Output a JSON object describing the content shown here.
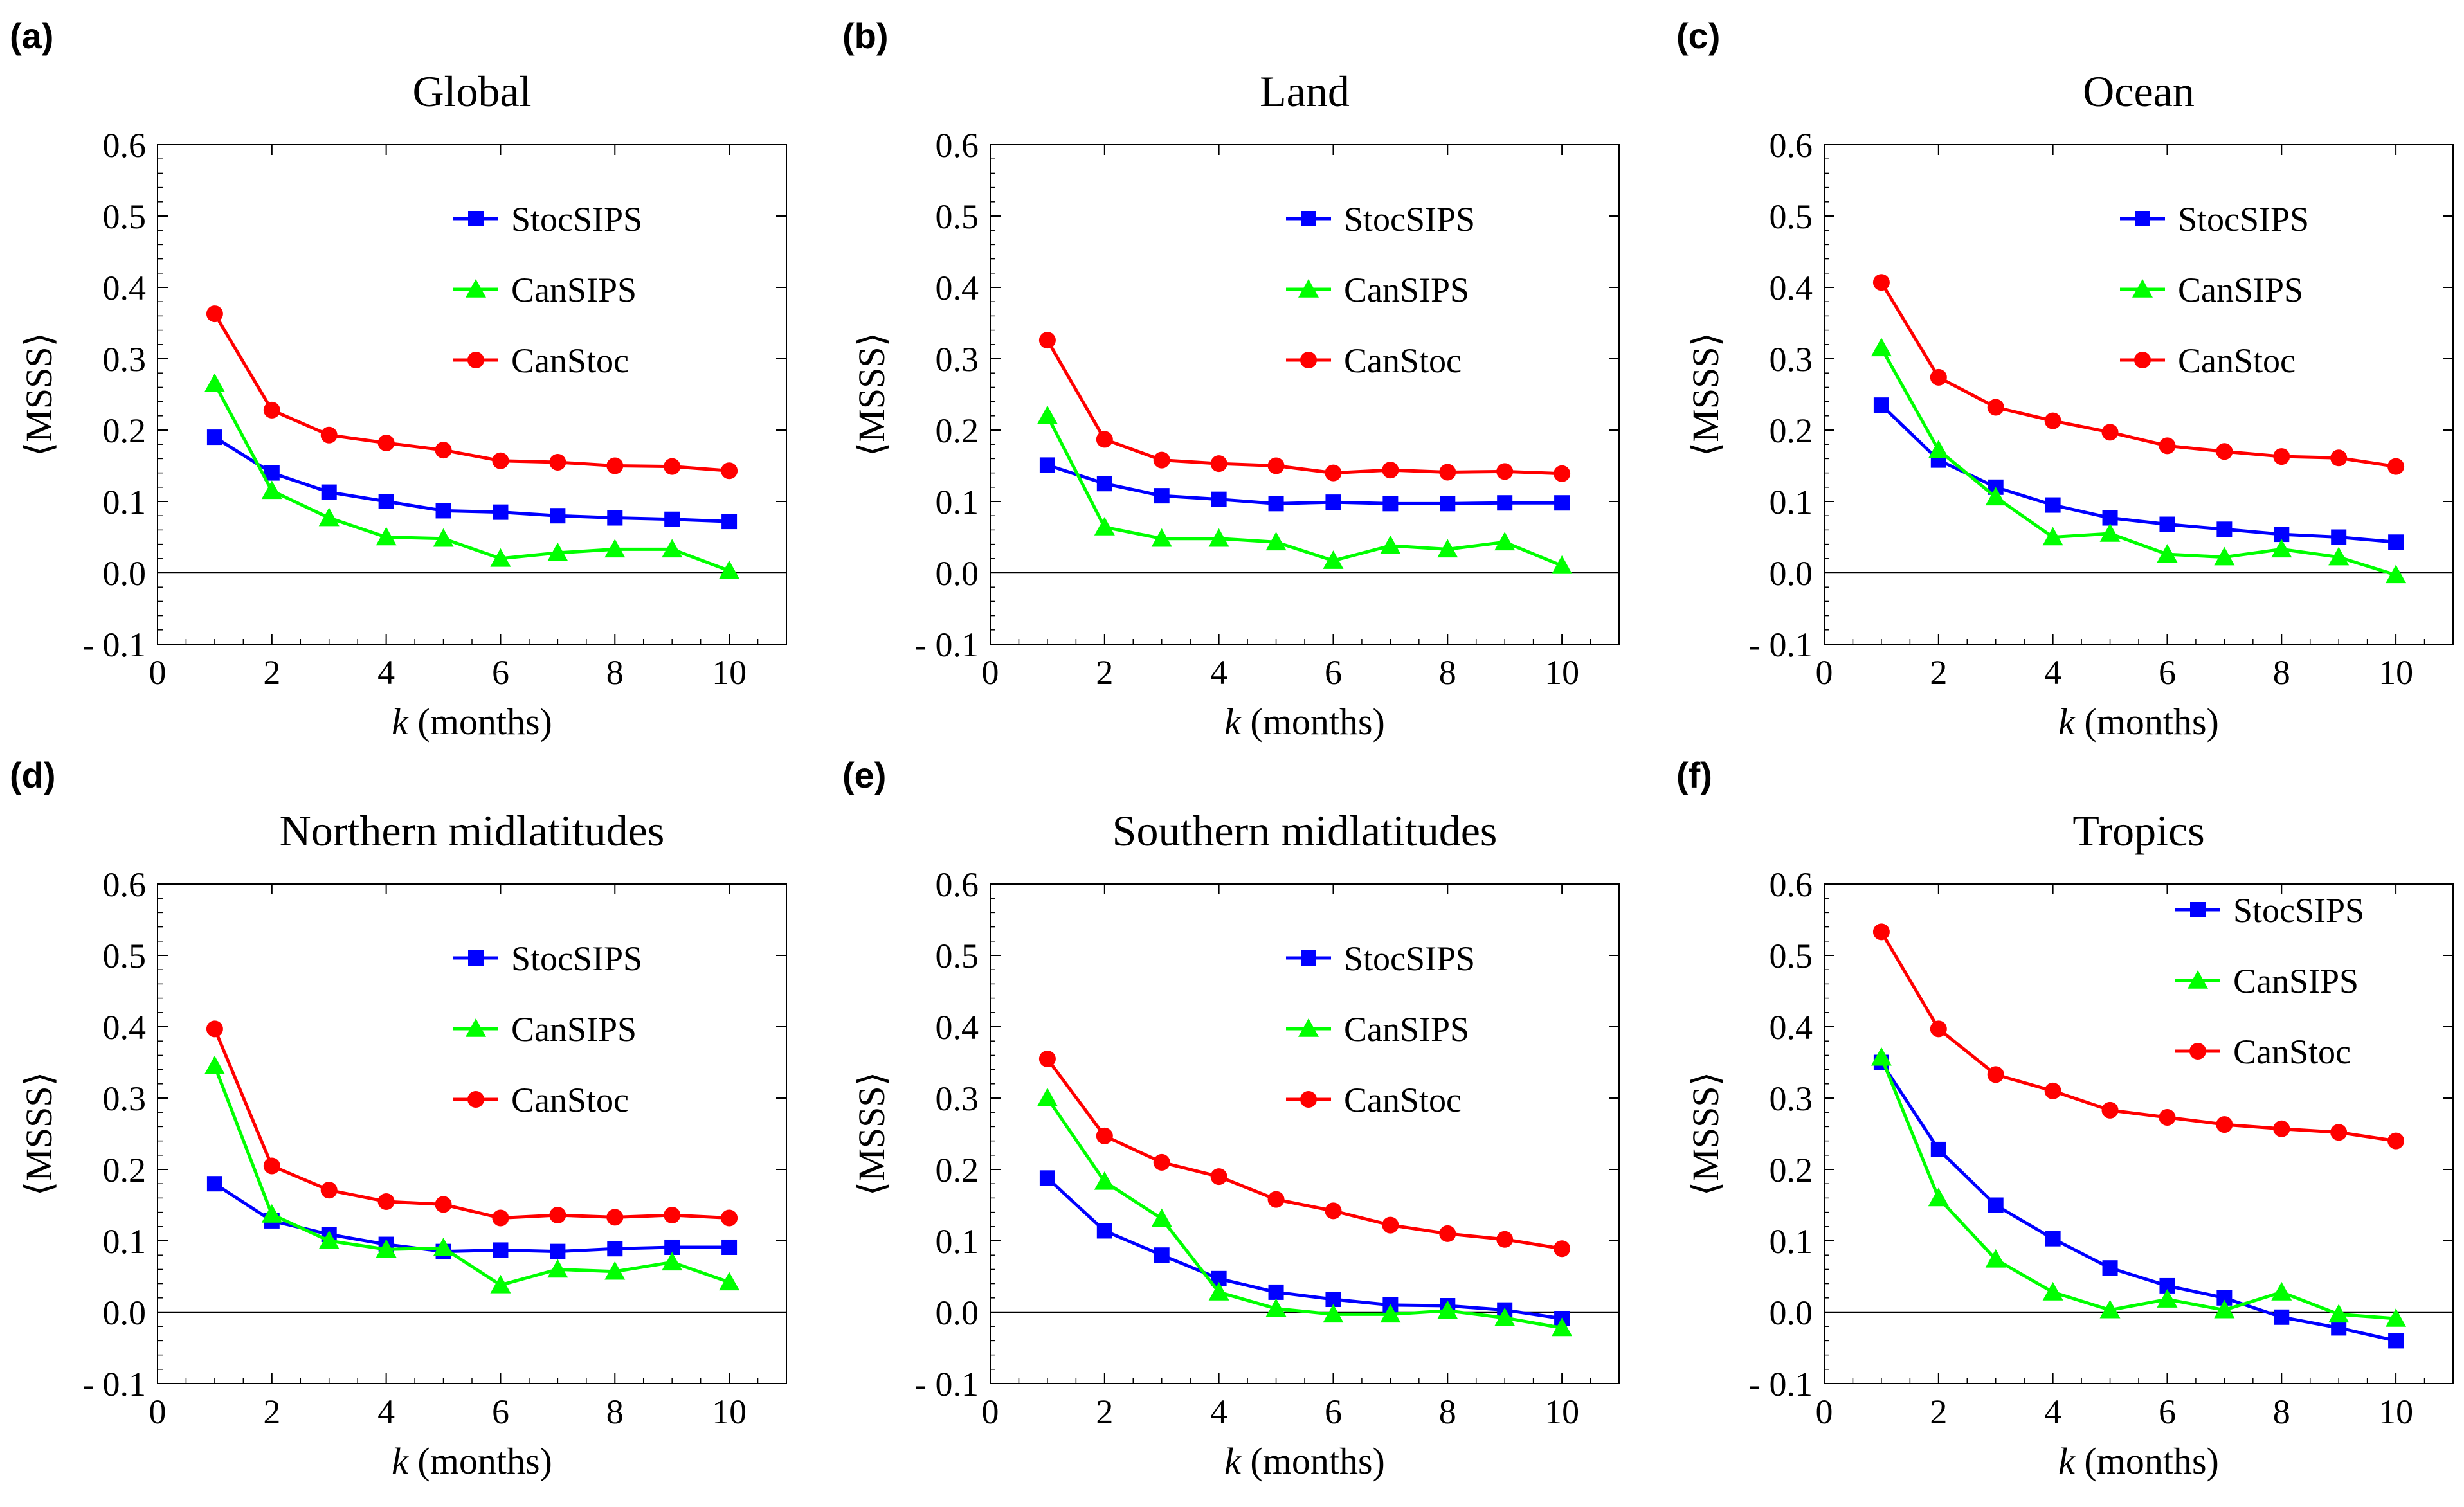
{
  "colors": {
    "StocSIPS": "#0000ff",
    "CanSIPS": "#00ff00",
    "CanStoc": "#ff0000",
    "axes": "#000000"
  },
  "chart_data": [
    {
      "type": "line",
      "letter": "(a)",
      "title": "Global",
      "ylabel": "⟨MSSS⟩",
      "xlabel_italic": "k",
      "xlabel_rest": " (months)",
      "xlim": [
        0,
        11
      ],
      "ylim": [
        -0.1,
        0.6
      ],
      "xticks": [
        0,
        2,
        4,
        6,
        8,
        10
      ],
      "xtick_labels": [
        "0",
        "2",
        "4",
        "6",
        "8",
        "10"
      ],
      "yticks": [
        -0.1,
        0.0,
        0.1,
        0.2,
        0.3,
        0.4,
        0.5,
        0.6
      ],
      "ytick_labels": [
        "- 0.1",
        "0.0",
        "0.1",
        "0.2",
        "0.3",
        "0.4",
        "0.5",
        "0.6"
      ],
      "legend_position": "top-right",
      "x": [
        1,
        2,
        3,
        4,
        5,
        6,
        7,
        8,
        9,
        10
      ],
      "series": [
        {
          "name": "StocSIPS",
          "marker": "square",
          "values": [
            0.19,
            0.14,
            0.113,
            0.1,
            0.087,
            0.085,
            0.08,
            0.077,
            0.075,
            0.072
          ]
        },
        {
          "name": "CanSIPS",
          "marker": "triangle",
          "values": [
            0.265,
            0.115,
            0.077,
            0.05,
            0.048,
            0.02,
            0.028,
            0.033,
            0.033,
            0.003
          ]
        },
        {
          "name": "CanStoc",
          "marker": "circle",
          "values": [
            0.363,
            0.228,
            0.193,
            0.182,
            0.172,
            0.157,
            0.155,
            0.15,
            0.149,
            0.143
          ]
        }
      ]
    },
    {
      "type": "line",
      "letter": "(b)",
      "title": "Land",
      "ylabel": "⟨MSSS⟩",
      "xlabel_italic": "k",
      "xlabel_rest": " (months)",
      "xlim": [
        0,
        11
      ],
      "ylim": [
        -0.1,
        0.6
      ],
      "xticks": [
        0,
        2,
        4,
        6,
        8,
        10
      ],
      "xtick_labels": [
        "0",
        "2",
        "4",
        "6",
        "8",
        "10"
      ],
      "yticks": [
        -0.1,
        0.0,
        0.1,
        0.2,
        0.3,
        0.4,
        0.5,
        0.6
      ],
      "ytick_labels": [
        "- 0.1",
        "0.0",
        "0.1",
        "0.2",
        "0.3",
        "0.4",
        "0.5",
        "0.6"
      ],
      "legend_position": "top-right",
      "x": [
        1,
        2,
        3,
        4,
        5,
        6,
        7,
        8,
        9,
        10
      ],
      "series": [
        {
          "name": "StocSIPS",
          "marker": "square",
          "values": [
            0.151,
            0.125,
            0.108,
            0.103,
            0.097,
            0.099,
            0.097,
            0.097,
            0.098,
            0.098
          ]
        },
        {
          "name": "CanSIPS",
          "marker": "triangle",
          "values": [
            0.22,
            0.064,
            0.048,
            0.048,
            0.043,
            0.017,
            0.038,
            0.033,
            0.043,
            0.01
          ]
        },
        {
          "name": "CanStoc",
          "marker": "circle",
          "values": [
            0.326,
            0.187,
            0.158,
            0.153,
            0.15,
            0.14,
            0.144,
            0.141,
            0.142,
            0.139
          ]
        }
      ]
    },
    {
      "type": "line",
      "letter": "(c)",
      "title": "Ocean",
      "ylabel": "⟨MSSS⟩",
      "xlabel_italic": "k",
      "xlabel_rest": " (months)",
      "xlim": [
        0,
        11
      ],
      "ylim": [
        -0.1,
        0.6
      ],
      "xticks": [
        0,
        2,
        4,
        6,
        8,
        10
      ],
      "xtick_labels": [
        "0",
        "2",
        "4",
        "6",
        "8",
        "10"
      ],
      "yticks": [
        -0.1,
        0.0,
        0.1,
        0.2,
        0.3,
        0.4,
        0.5,
        0.6
      ],
      "ytick_labels": [
        "- 0.1",
        "0.0",
        "0.1",
        "0.2",
        "0.3",
        "0.4",
        "0.5",
        "0.6"
      ],
      "legend_position": "top-right",
      "x": [
        1,
        2,
        3,
        4,
        5,
        6,
        7,
        8,
        9,
        10
      ],
      "series": [
        {
          "name": "StocSIPS",
          "marker": "square",
          "values": [
            0.235,
            0.158,
            0.12,
            0.095,
            0.077,
            0.068,
            0.061,
            0.054,
            0.05,
            0.043
          ]
        },
        {
          "name": "CanSIPS",
          "marker": "triangle",
          "values": [
            0.315,
            0.172,
            0.106,
            0.05,
            0.055,
            0.026,
            0.022,
            0.033,
            0.022,
            -0.003
          ]
        },
        {
          "name": "CanStoc",
          "marker": "circle",
          "values": [
            0.407,
            0.274,
            0.232,
            0.213,
            0.197,
            0.178,
            0.17,
            0.163,
            0.161,
            0.149
          ]
        }
      ]
    },
    {
      "type": "line",
      "letter": "(d)",
      "title": "Northern midlatitudes",
      "ylabel": "⟨MSSS⟩",
      "xlabel_italic": "k",
      "xlabel_rest": " (months)",
      "xlim": [
        0,
        11
      ],
      "ylim": [
        -0.1,
        0.6
      ],
      "xticks": [
        0,
        2,
        4,
        6,
        8,
        10
      ],
      "xtick_labels": [
        "0",
        "2",
        "4",
        "6",
        "8",
        "10"
      ],
      "yticks": [
        -0.1,
        0.0,
        0.1,
        0.2,
        0.3,
        0.4,
        0.5,
        0.6
      ],
      "ytick_labels": [
        "- 0.1",
        "0.0",
        "0.1",
        "0.2",
        "0.3",
        "0.4",
        "0.5",
        "0.6"
      ],
      "legend_position": "top-right",
      "x": [
        1,
        2,
        3,
        4,
        5,
        6,
        7,
        8,
        9,
        10
      ],
      "series": [
        {
          "name": "StocSIPS",
          "marker": "square",
          "values": [
            0.18,
            0.128,
            0.109,
            0.095,
            0.085,
            0.087,
            0.085,
            0.089,
            0.091,
            0.091
          ]
        },
        {
          "name": "CanSIPS",
          "marker": "triangle",
          "values": [
            0.345,
            0.137,
            0.1,
            0.088,
            0.09,
            0.038,
            0.06,
            0.057,
            0.07,
            0.042
          ]
        },
        {
          "name": "CanStoc",
          "marker": "circle",
          "values": [
            0.397,
            0.205,
            0.171,
            0.155,
            0.151,
            0.132,
            0.136,
            0.133,
            0.136,
            0.132
          ]
        }
      ]
    },
    {
      "type": "line",
      "letter": "(e)",
      "title": "Southern midlatitudes",
      "ylabel": "⟨MSSS⟩",
      "xlabel_italic": "k",
      "xlabel_rest": " (months)",
      "xlim": [
        0,
        11
      ],
      "ylim": [
        -0.1,
        0.6
      ],
      "xticks": [
        0,
        2,
        4,
        6,
        8,
        10
      ],
      "xtick_labels": [
        "0",
        "2",
        "4",
        "6",
        "8",
        "10"
      ],
      "yticks": [
        -0.1,
        0.0,
        0.1,
        0.2,
        0.3,
        0.4,
        0.5,
        0.6
      ],
      "ytick_labels": [
        "- 0.1",
        "0.0",
        "0.1",
        "0.2",
        "0.3",
        "0.4",
        "0.5",
        "0.6"
      ],
      "legend_position": "top-right",
      "x": [
        1,
        2,
        3,
        4,
        5,
        6,
        7,
        8,
        9,
        10
      ],
      "series": [
        {
          "name": "StocSIPS",
          "marker": "square",
          "values": [
            0.188,
            0.114,
            0.08,
            0.047,
            0.028,
            0.018,
            0.01,
            0.009,
            0.003,
            -0.009
          ]
        },
        {
          "name": "CanSIPS",
          "marker": "triangle",
          "values": [
            0.3,
            0.183,
            0.131,
            0.028,
            0.005,
            -0.003,
            -0.003,
            0.002,
            -0.008,
            -0.022
          ]
        },
        {
          "name": "CanStoc",
          "marker": "circle",
          "values": [
            0.355,
            0.247,
            0.21,
            0.19,
            0.158,
            0.142,
            0.122,
            0.11,
            0.102,
            0.089
          ]
        }
      ]
    },
    {
      "type": "line",
      "letter": "(f)",
      "title": "Tropics",
      "ylabel": "⟨MSSS⟩",
      "xlabel_italic": "k",
      "xlabel_rest": " (months)",
      "xlim": [
        0,
        11
      ],
      "ylim": [
        -0.1,
        0.6
      ],
      "xticks": [
        0,
        2,
        4,
        6,
        8,
        10
      ],
      "xtick_labels": [
        "0",
        "2",
        "4",
        "6",
        "8",
        "10"
      ],
      "yticks": [
        -0.1,
        0.0,
        0.1,
        0.2,
        0.3,
        0.4,
        0.5,
        0.6
      ],
      "ytick_labels": [
        "- 0.1",
        "0.0",
        "0.1",
        "0.2",
        "0.3",
        "0.4",
        "0.5",
        "0.6"
      ],
      "legend_position": "top-right",
      "x": [
        1,
        2,
        3,
        4,
        5,
        6,
        7,
        8,
        9,
        10
      ],
      "series": [
        {
          "name": "StocSIPS",
          "marker": "square",
          "values": [
            0.35,
            0.228,
            0.15,
            0.103,
            0.062,
            0.037,
            0.02,
            -0.007,
            -0.022,
            -0.04
          ]
        },
        {
          "name": "CanSIPS",
          "marker": "triangle",
          "values": [
            0.357,
            0.16,
            0.074,
            0.028,
            0.003,
            0.018,
            0.003,
            0.028,
            -0.003,
            -0.009
          ]
        },
        {
          "name": "CanStoc",
          "marker": "circle",
          "values": [
            0.533,
            0.397,
            0.333,
            0.31,
            0.283,
            0.273,
            0.263,
            0.257,
            0.252,
            0.24
          ]
        }
      ]
    }
  ]
}
